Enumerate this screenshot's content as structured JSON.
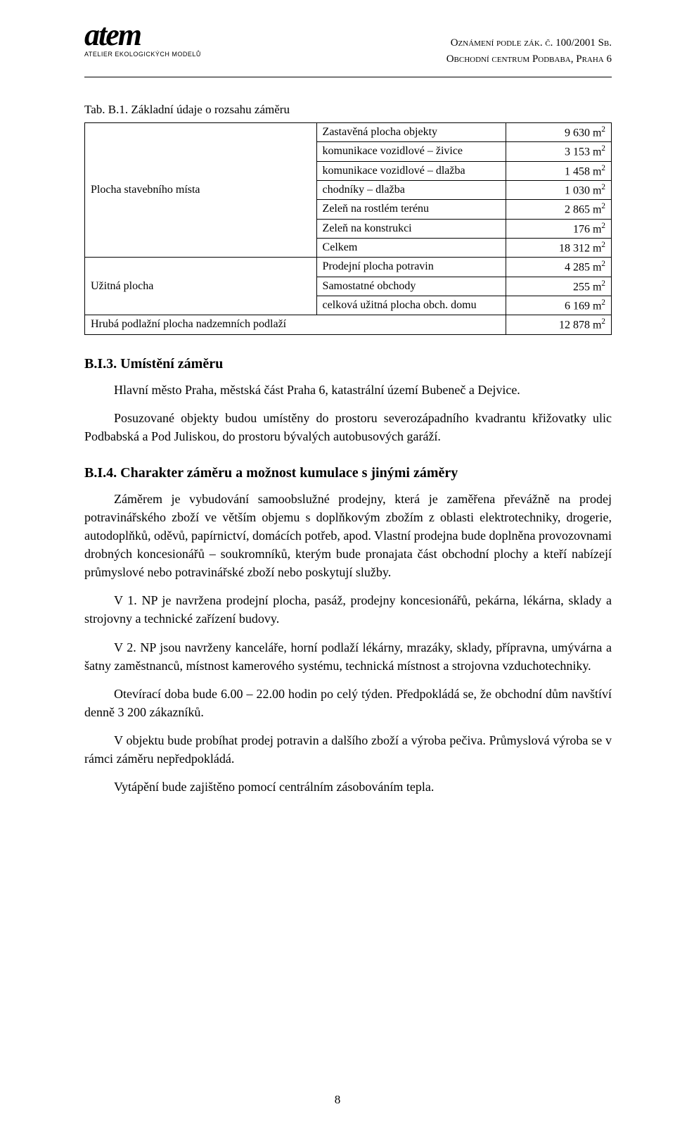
{
  "header": {
    "logo_main": "atem",
    "logo_sub": "ATELIER EKOLOGICKÝCH MODELŮ",
    "right_line1": "Oznámení podle zák. č. 100/2001 Sb.",
    "right_line2": "Obchodní centrum Podbaba, Praha 6"
  },
  "table_caption": "Tab. B.1. Základní údaje o rozsahu záměru",
  "table": {
    "groups": [
      {
        "label": "Plocha stavebního místa",
        "rows": [
          {
            "mid": "Zastavěná plocha objekty",
            "val": "9 630 m",
            "sup": "2"
          },
          {
            "mid": "komunikace vozidlové – živice",
            "val": "3 153 m",
            "sup": "2"
          },
          {
            "mid": "komunikace vozidlové – dlažba",
            "val": "1 458 m",
            "sup": "2"
          },
          {
            "mid": "chodníky – dlažba",
            "val": "1 030 m",
            "sup": "2"
          },
          {
            "mid": "Zeleň na rostlém terénu",
            "val": "2 865 m",
            "sup": "2"
          },
          {
            "mid": "Zeleň na konstrukci",
            "val": "176 m",
            "sup": "2"
          },
          {
            "mid": "Celkem",
            "val": "18 312 m",
            "sup": "2"
          }
        ]
      },
      {
        "label": "Užitná plocha",
        "rows": [
          {
            "mid": "Prodejní plocha potravin",
            "val": "4 285 m",
            "sup": "2"
          },
          {
            "mid": "Samostatné obchody",
            "val": "255 m",
            "sup": "2"
          },
          {
            "mid": "celková užitná plocha obch. domu",
            "val": "6 169 m",
            "sup": "2"
          }
        ]
      }
    ],
    "footer_row": {
      "label": "Hrubá podlažní plocha nadzemních podlaží",
      "val": "12 878 m",
      "sup": "2"
    }
  },
  "section_b13": {
    "title": "B.I.3. Umístění záměru",
    "p1": "Hlavní město Praha, městská část Praha 6, katastrální území Bubeneč a Dejvice.",
    "p2": "Posuzované objekty budou umístěny do prostoru severozápadního kvadrantu křižovatky ulic Podbabská a Pod Juliskou, do prostoru bývalých autobusových garáží."
  },
  "section_b14": {
    "title": "B.I.4. Charakter záměru a možnost kumulace s jinými záměry",
    "p1": "Záměrem je vybudování samoobslužné prodejny, která je zaměřena převážně na prodej potravinářského zboží ve větším objemu s doplňkovým zbožím z oblasti elektrotechniky, drogerie, autodoplňků, oděvů, papírnictví, domácích potřeb, apod. Vlastní prodejna bude doplněna provozovnami drobných koncesionářů – soukromníků, kterým bude pronajata část obchodní plochy a kteří nabízejí průmyslové nebo potravinářské zboží nebo poskytují služby.",
    "p2": "V 1. NP je navržena prodejní plocha, pasáž, prodejny koncesionářů, pekárna, lékárna, sklady a strojovny a technické zařízení budovy.",
    "p3": "V 2. NP jsou navrženy kanceláře, horní podlaží lékárny, mrazáky, sklady, přípravna, umývárna a šatny zaměstnanců, místnost kamerového systému, technická místnost a strojovna vzduchotechniky.",
    "p4": "Otevírací doba bude 6.00 – 22.00 hodin po celý týden. Předpokládá se, že obchodní dům navštíví denně 3 200 zákazníků.",
    "p5": "V objektu bude probíhat prodej potravin a dalšího zboží a výroba pečiva. Průmyslová výroba se v rámci záměru nepředpokládá.",
    "p6": "Vytápění bude zajištěno pomocí centrálním zásobováním tepla."
  },
  "page_number": "8"
}
